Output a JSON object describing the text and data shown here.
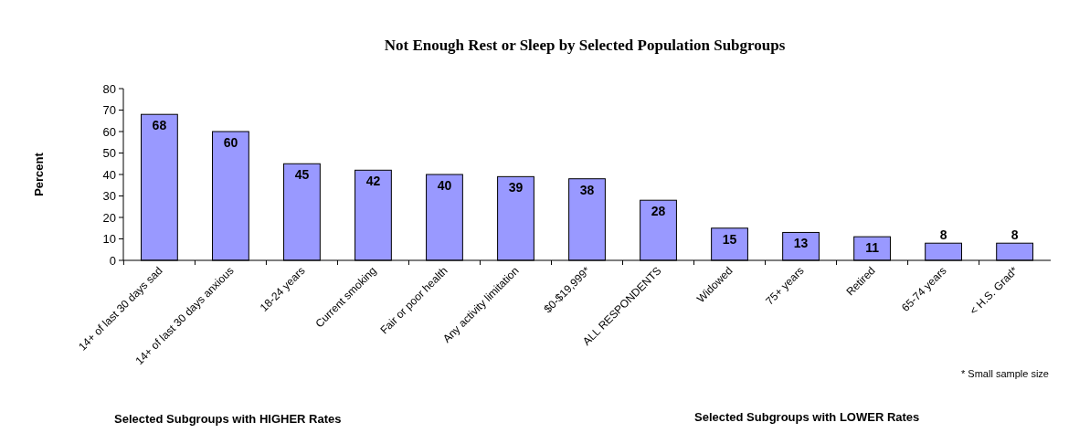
{
  "chart_data": {
    "type": "bar",
    "title": "Not Enough Rest or Sleep by Selected Population Subgroups",
    "ylabel": "Percent",
    "categories": [
      "14+ of last 30 days sad",
      "14+ of last 30 days anxious",
      "18-24 years",
      "Current smoking",
      "Fair or poor health",
      "Any activity limitation",
      "$0-$19,999*",
      "ALL RESPONDENTS",
      "Widowed",
      "75+ years",
      "Retired",
      "65-74 years",
      "< H.S. Grad*"
    ],
    "values": [
      68,
      60,
      45,
      42,
      40,
      39,
      38,
      28,
      15,
      13,
      11,
      8,
      8
    ],
    "color": "#9999ff",
    "ylim": [
      0,
      80
    ],
    "yticks": [
      0,
      10,
      20,
      30,
      40,
      50,
      60,
      70,
      80
    ],
    "grid": false,
    "data_labels": true,
    "annotations": [
      "* Small sample size",
      "Selected Subgroups with HIGHER Rates",
      "Selected Subgroups with LOWER Rates"
    ]
  }
}
